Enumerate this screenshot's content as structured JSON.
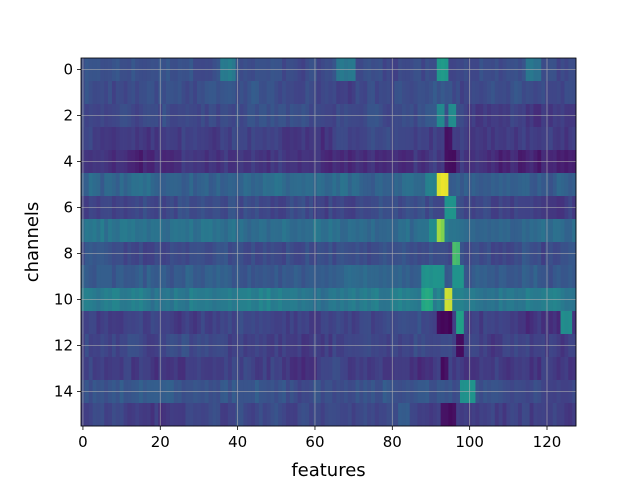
{
  "chart_data": {
    "type": "heatmap",
    "colormap": "viridis",
    "xlabel": "features",
    "ylabel": "channels",
    "xlim": [
      -0.5,
      127.5
    ],
    "ylim": [
      15.5,
      -0.5
    ],
    "x_ticks": [
      0,
      20,
      40,
      60,
      80,
      100,
      120
    ],
    "y_ticks": [
      0,
      2,
      4,
      6,
      8,
      10,
      12,
      14
    ],
    "grid": true,
    "rows": 16,
    "cols": 128,
    "row_baseline": [
      0.3,
      0.3,
      0.27,
      0.24,
      0.18,
      0.4,
      0.28,
      0.46,
      0.3,
      0.36,
      0.5,
      0.26,
      0.27,
      0.22,
      0.33,
      0.26
    ],
    "hot_columns": [
      {
        "row": 0,
        "col": 36,
        "width": 4,
        "value": 0.52
      },
      {
        "row": 0,
        "col": 66,
        "width": 5,
        "value": 0.5
      },
      {
        "row": 0,
        "col": 92,
        "width": 3,
        "value": 0.66
      },
      {
        "row": 0,
        "col": 115,
        "width": 4,
        "value": 0.48
      },
      {
        "row": 2,
        "col": 92,
        "width": 2,
        "value": 0.6
      },
      {
        "row": 2,
        "col": 95,
        "width": 2,
        "value": 0.6
      },
      {
        "row": 3,
        "col": 94,
        "width": 2,
        "value": 0.06
      },
      {
        "row": 4,
        "col": 94,
        "width": 3,
        "value": 0.05
      },
      {
        "row": 5,
        "col": 92,
        "width": 3,
        "value": 0.97
      },
      {
        "row": 5,
        "col": 89,
        "width": 3,
        "value": 0.55
      },
      {
        "row": 6,
        "col": 94,
        "width": 3,
        "value": 0.65
      },
      {
        "row": 7,
        "col": 92,
        "width": 2,
        "value": 0.9
      },
      {
        "row": 7,
        "col": 90,
        "width": 2,
        "value": 0.6
      },
      {
        "row": 8,
        "col": 96,
        "width": 2,
        "value": 0.8
      },
      {
        "row": 9,
        "col": 88,
        "width": 6,
        "value": 0.62
      },
      {
        "row": 9,
        "col": 96,
        "width": 3,
        "value": 0.65
      },
      {
        "row": 10,
        "col": 94,
        "width": 2,
        "value": 0.95
      },
      {
        "row": 10,
        "col": 88,
        "width": 3,
        "value": 0.75
      },
      {
        "row": 10,
        "col": 8,
        "width": 2,
        "value": 0.55
      },
      {
        "row": 10,
        "col": 40,
        "width": 4,
        "value": 0.55
      },
      {
        "row": 10,
        "col": 120,
        "width": 4,
        "value": 0.55
      },
      {
        "row": 11,
        "col": 92,
        "width": 4,
        "value": 0.02
      },
      {
        "row": 11,
        "col": 97,
        "width": 2,
        "value": 0.7
      },
      {
        "row": 11,
        "col": 124,
        "width": 3,
        "value": 0.6
      },
      {
        "row": 12,
        "col": 97,
        "width": 2,
        "value": 0.05
      },
      {
        "row": 13,
        "col": 93,
        "width": 2,
        "value": 0.05
      },
      {
        "row": 14,
        "col": 98,
        "width": 4,
        "value": 0.62
      },
      {
        "row": 15,
        "col": 93,
        "width": 4,
        "value": 0.05
      },
      {
        "row": 15,
        "col": 82,
        "width": 3,
        "value": 0.38
      }
    ]
  },
  "colors": {
    "grid": "#b0b0b0",
    "axis": "#000000",
    "background": "#ffffff"
  }
}
